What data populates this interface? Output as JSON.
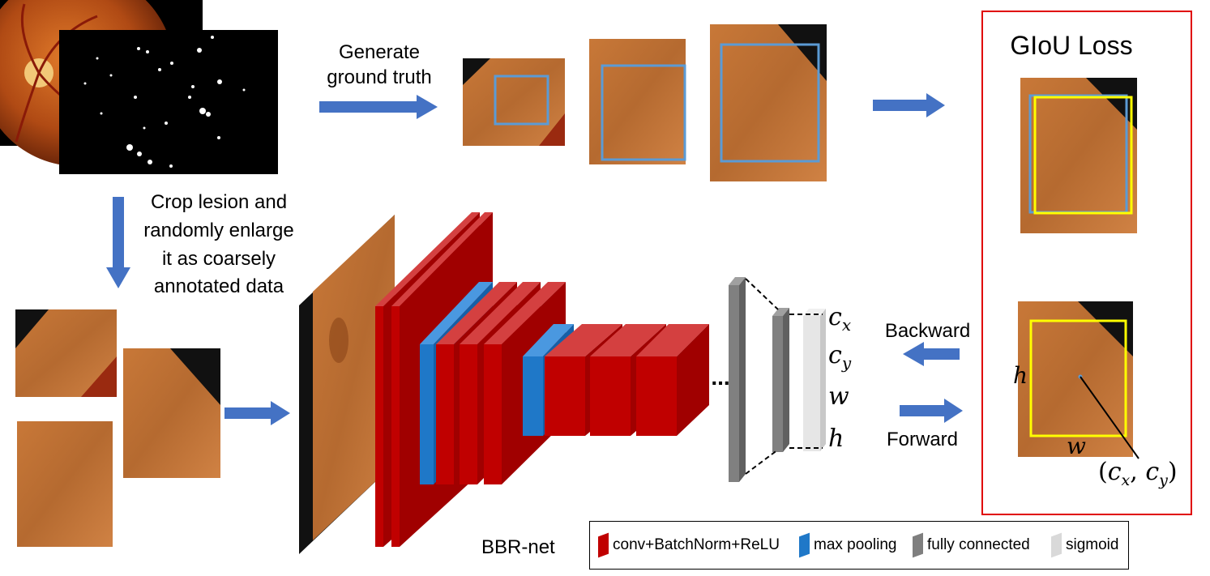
{
  "labels": {
    "generate_line1": "Generate",
    "generate_line2": "ground truth",
    "crop_line1": "Crop lesion and",
    "crop_line2": "randomly enlarge",
    "crop_line3": "it as coarsely",
    "crop_line4": "annotated data",
    "giou_title": "GIoU Loss",
    "backward": "Backward",
    "forward": "Forward",
    "net_name": "BBR-net",
    "ellipsis": "...",
    "out_cx": "c",
    "out_cx_sub": "x",
    "out_cy": "c",
    "out_cy_sub": "y",
    "out_w": "w",
    "out_h": "h",
    "box_h": "h",
    "box_w": "w",
    "center_label_open": "(",
    "center_label_c1": "c",
    "center_label_s1": "x",
    "center_label_comma": ", ",
    "center_label_c2": "c",
    "center_label_s2": "y",
    "center_label_close": ")"
  },
  "legend": [
    {
      "label": "conv+BatchNorm+ReLU",
      "color": "#c00000"
    },
    {
      "label": "max pooling",
      "color": "#1f78c8"
    },
    {
      "label": "fully connected",
      "color": "#7f7f7f"
    },
    {
      "label": "sigmoid",
      "color": "#d9d9d9"
    }
  ],
  "colors": {
    "arrow": "#4472c4",
    "conv": "#c00000",
    "pool": "#1f78c8",
    "fc": "#808080",
    "sigmoid": "#e6e6e6",
    "gt_box": "#5b9bd5",
    "pred_box": "#ffff00",
    "giou_frame": "#e00000"
  }
}
